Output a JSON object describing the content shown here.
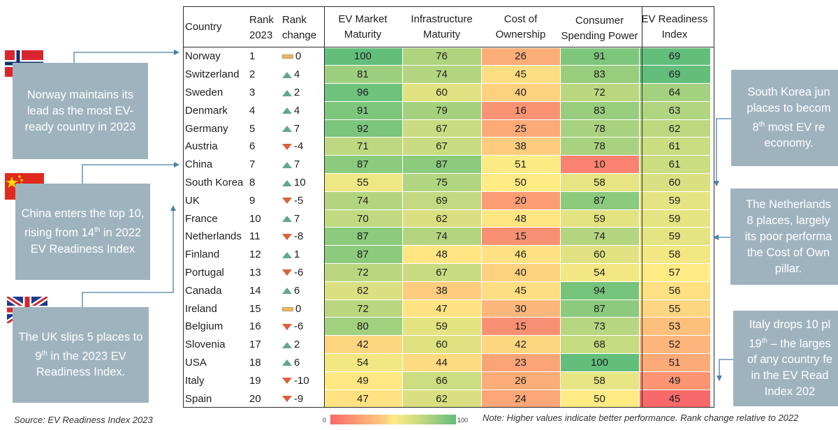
{
  "headers": {
    "country": "Country",
    "rank": "Rank 2023",
    "change": "Rank change",
    "ev_market": "EV Market Maturity",
    "infrastructure": "Infrastructure Maturity",
    "cost": "Cost of Ownership",
    "spending": "Consumer Spending Power",
    "index": "EV Readiness Index"
  },
  "colors": {
    "scale_low": "#f8696b",
    "scale_mid": "#ffeb84",
    "scale_high": "#63be7b",
    "rank_up": "#5fa88b",
    "rank_down": "#d9613c",
    "rank_flat": "#e6b96a",
    "callout_bg": "#9fb3bf"
  },
  "callouts": {
    "norway": {
      "flag": "norway-flag",
      "text": "Norway maintains its lead as the most EV-ready country in 2023"
    },
    "china": {
      "flag": "china-flag",
      "text_line1": "China enters the top 10, rising from 14",
      "text_sup": "th",
      "text_line2": "in 2022 EV Readiness Index"
    },
    "uk": {
      "flag": "uk-flag",
      "text_pre": "The UK slips 5 places to 9",
      "text_sup": "th",
      "text_post": " in the 2023 EV Readiness Index."
    },
    "south_korea": {
      "line1": "South Korea jun",
      "line2": "places to becom",
      "line3_pre": "8",
      "line3_sup": "th",
      "line3_post": " most EV re",
      "line4": "economy."
    },
    "netherlands": {
      "line1": "The Netherlands",
      "line2": "8 places, largely",
      "line3": "its poor performa",
      "line4": "the Cost of Own",
      "line5": "pillar."
    },
    "italy": {
      "line1": "Italy drops 10 pl",
      "line2_pre": "19",
      "line2_sup": "th",
      "line2_post": " – the larges",
      "line3": "of any country fe",
      "line4": "in the EV Read",
      "line5": "Index 202"
    }
  },
  "footer": {
    "source": "Source: EV Readiness Index 2023",
    "note": "Note: Higher values indicate better performance. Rank change relative to 2022",
    "legend_min": "0",
    "legend_max": "100"
  },
  "chart_data": {
    "type": "table",
    "value_range": [
      0,
      100
    ],
    "color_scale": "red-yellow-green, 0 to 100",
    "columns": [
      "Country",
      "Rank 2023",
      "Rank change",
      "EV Market Maturity",
      "Infrastructure Maturity",
      "Cost of Ownership",
      "Consumer Spending Power",
      "EV Readiness Index"
    ],
    "rows": [
      {
        "country": "Norway",
        "rank": 1,
        "change": 0,
        "ev_market": 100,
        "infrastructure": 76,
        "cost": 26,
        "spending": 91,
        "index": 69
      },
      {
        "country": "Switzerland",
        "rank": 2,
        "change": 4,
        "ev_market": 81,
        "infrastructure": 74,
        "cost": 45,
        "spending": 83,
        "index": 69
      },
      {
        "country": "Sweden",
        "rank": 3,
        "change": 2,
        "ev_market": 96,
        "infrastructure": 60,
        "cost": 40,
        "spending": 72,
        "index": 64
      },
      {
        "country": "Denmark",
        "rank": 4,
        "change": 4,
        "ev_market": 91,
        "infrastructure": 79,
        "cost": 16,
        "spending": 83,
        "index": 63
      },
      {
        "country": "Germany",
        "rank": 5,
        "change": 7,
        "ev_market": 92,
        "infrastructure": 67,
        "cost": 25,
        "spending": 78,
        "index": 62
      },
      {
        "country": "Austria",
        "rank": 6,
        "change": -4,
        "ev_market": 71,
        "infrastructure": 67,
        "cost": 38,
        "spending": 78,
        "index": 61
      },
      {
        "country": "China",
        "rank": 7,
        "change": 7,
        "ev_market": 87,
        "infrastructure": 87,
        "cost": 51,
        "spending": 10,
        "index": 61
      },
      {
        "country": "South Korea",
        "rank": 8,
        "change": 10,
        "ev_market": 55,
        "infrastructure": 75,
        "cost": 50,
        "spending": 58,
        "index": 60
      },
      {
        "country": "UK",
        "rank": 9,
        "change": -5,
        "ev_market": 74,
        "infrastructure": 69,
        "cost": 20,
        "spending": 87,
        "index": 59
      },
      {
        "country": "France",
        "rank": 10,
        "change": 7,
        "ev_market": 70,
        "infrastructure": 62,
        "cost": 48,
        "spending": 59,
        "index": 59
      },
      {
        "country": "Netherlands",
        "rank": 11,
        "change": -8,
        "ev_market": 87,
        "infrastructure": 74,
        "cost": 15,
        "spending": 74,
        "index": 59
      },
      {
        "country": "Finland",
        "rank": 12,
        "change": 1,
        "ev_market": 87,
        "infrastructure": 48,
        "cost": 46,
        "spending": 60,
        "index": 58
      },
      {
        "country": "Portugal",
        "rank": 13,
        "change": -6,
        "ev_market": 72,
        "infrastructure": 67,
        "cost": 40,
        "spending": 54,
        "index": 57
      },
      {
        "country": "Canada",
        "rank": 14,
        "change": 6,
        "ev_market": 62,
        "infrastructure": 38,
        "cost": 45,
        "spending": 94,
        "index": 56
      },
      {
        "country": "Ireland",
        "rank": 15,
        "change": 0,
        "ev_market": 72,
        "infrastructure": 47,
        "cost": 30,
        "spending": 87,
        "index": 55
      },
      {
        "country": "Belgium",
        "rank": 16,
        "change": -6,
        "ev_market": 80,
        "infrastructure": 59,
        "cost": 15,
        "spending": 73,
        "index": 53
      },
      {
        "country": "Slovenia",
        "rank": 17,
        "change": 2,
        "ev_market": 42,
        "infrastructure": 60,
        "cost": 42,
        "spending": 68,
        "index": 52
      },
      {
        "country": "USA",
        "rank": 18,
        "change": 6,
        "ev_market": 54,
        "infrastructure": 44,
        "cost": 23,
        "spending": 100,
        "index": 51
      },
      {
        "country": "Italy",
        "rank": 19,
        "change": -10,
        "ev_market": 49,
        "infrastructure": 66,
        "cost": 26,
        "spending": 58,
        "index": 49
      },
      {
        "country": "Spain",
        "rank": 20,
        "change": -9,
        "ev_market": 47,
        "infrastructure": 62,
        "cost": 24,
        "spending": 50,
        "index": 45
      }
    ]
  }
}
